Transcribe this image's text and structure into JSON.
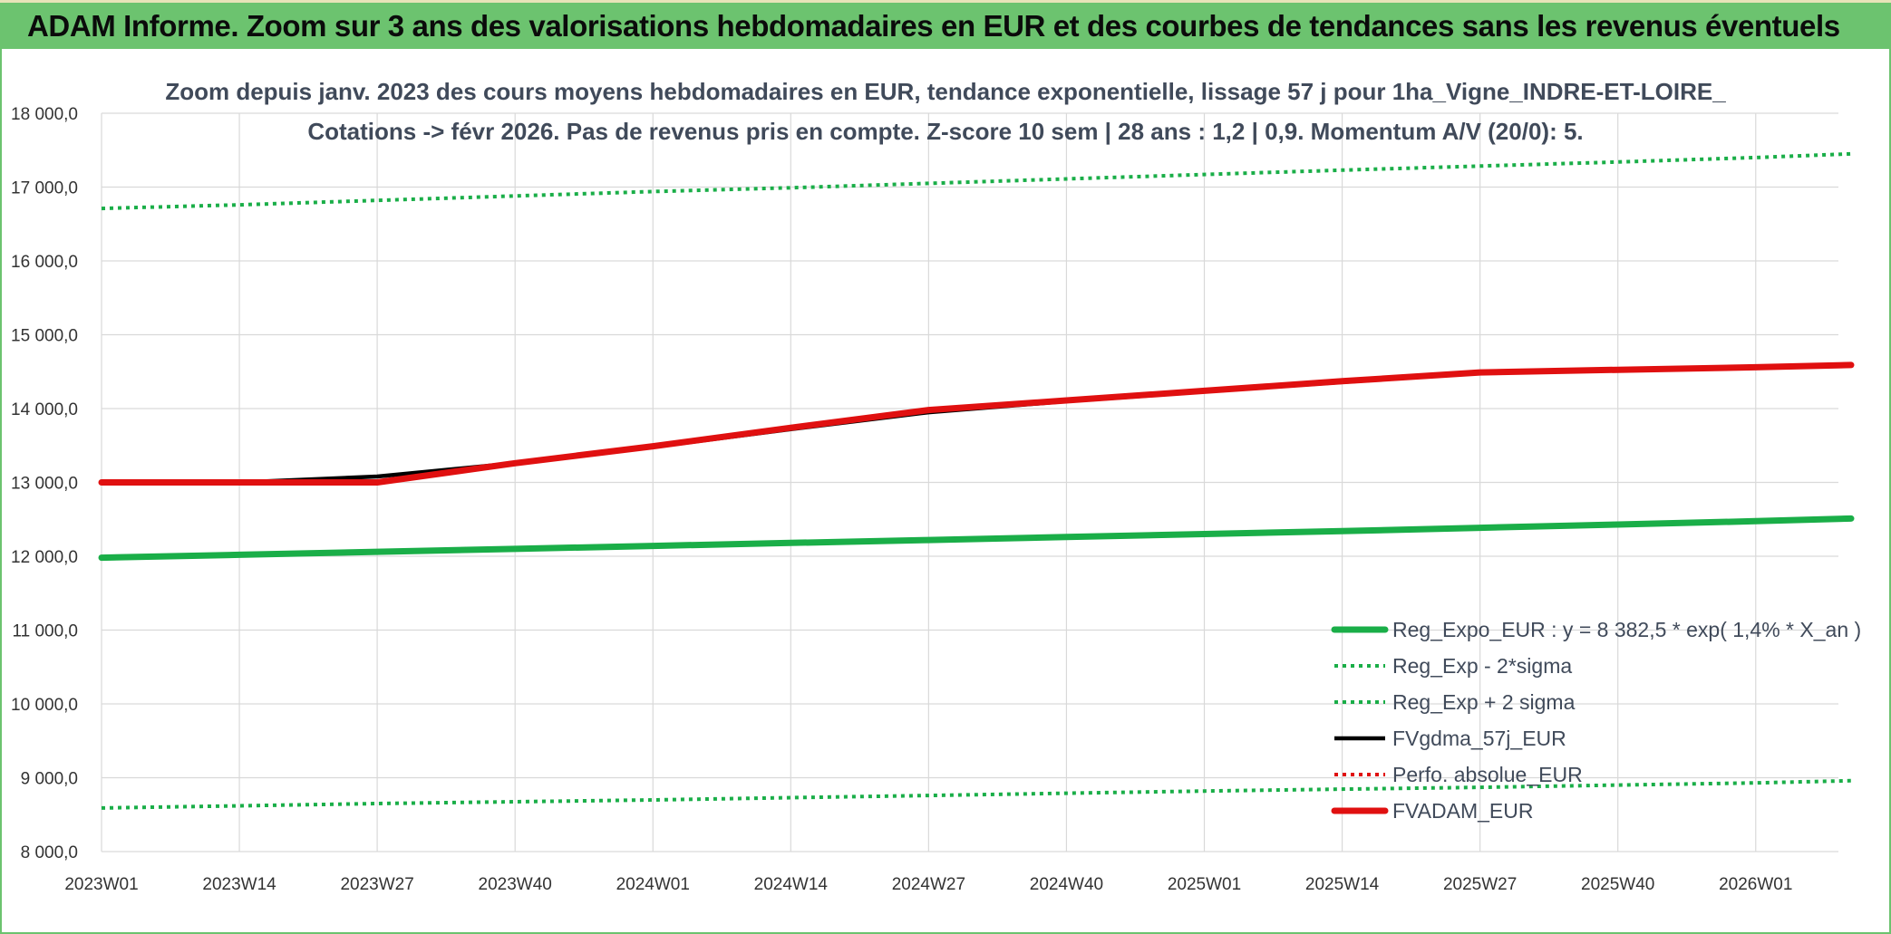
{
  "header": {
    "title": "ADAM Informe. Zoom sur 3 ans des valorisations hebdomadaires en EUR et des courbes de tendances sans les revenus éventuels"
  },
  "colors": {
    "banner": "#6cc36f",
    "reg_expo": "#1aae48",
    "sigma_bands": "#1aae48",
    "fvgdma": "#000000",
    "perfo": "#e01010",
    "fvadam": "#e01010",
    "grid": "#d9d9d9"
  },
  "chart_data": {
    "type": "line",
    "title_line1": "Zoom depuis janv. 2023 des cours moyens hebdomadaires en EUR, tendance exponentielle, lissage 57 j pour 1ha_Vigne_INDRE-ET-LOIRE_",
    "title_line2": "Cotations -> févr 2026. Pas de revenus pris en compte. Z-score 10 sem | 28 ans : 1,2 | 0,9. Momentum A/V (20/0): 5.",
    "xlabel": "",
    "ylabel": "",
    "ylim": [
      8000,
      18000
    ],
    "y_ticks": [
      "18 000,0",
      "17 000,0",
      "16 000,0",
      "15 000,0",
      "14 000,0",
      "13 000,0",
      "12 000,0",
      "11 000,0",
      "10 000,0",
      "9 000,0",
      "8 000,0"
    ],
    "x_ticks": [
      "2023W01",
      "2023W14",
      "2023W27",
      "2023W40",
      "2024W01",
      "2024W14",
      "2024W27",
      "2024W40",
      "2025W01",
      "2025W14",
      "2025W27",
      "2025W40",
      "2026W01"
    ],
    "x_points": [
      0,
      13,
      26,
      39,
      52,
      65,
      78,
      91,
      104,
      117,
      130,
      143,
      156,
      165
    ],
    "grid": true,
    "legend_position": "bottom-right",
    "series": [
      {
        "name": "Reg_Expo_EUR : y = 8 382,5 * exp( 1,4% *  X_an )",
        "style": "solid-thick",
        "values": [
          11980,
          12020,
          12060,
          12100,
          12140,
          12180,
          12220,
          12260,
          12300,
          12340,
          12385,
          12430,
          12475,
          12510
        ]
      },
      {
        "name": "Reg_Exp - 2*sigma",
        "style": "dotted",
        "values": [
          8590,
          8620,
          8650,
          8675,
          8700,
          8730,
          8760,
          8790,
          8820,
          8845,
          8870,
          8900,
          8930,
          8960
        ]
      },
      {
        "name": "Reg_Exp + 2 sigma",
        "style": "dotted",
        "values": [
          16710,
          16760,
          16820,
          16880,
          16940,
          16990,
          17050,
          17110,
          17170,
          17230,
          17285,
          17340,
          17400,
          17450
        ]
      },
      {
        "name": "FVgdma_57j_EUR",
        "style": "solid",
        "values": [
          13000,
          13000,
          13080,
          13260,
          13480,
          13720,
          13950,
          14100,
          14230,
          14360,
          14480,
          14520,
          14560,
          14580
        ]
      },
      {
        "name": "Perfo. absolue_EUR",
        "style": "dotted",
        "values": []
      },
      {
        "name": "FVADAM_EUR",
        "style": "solid-thick",
        "values": [
          13000,
          13000,
          13000,
          13260,
          13490,
          13740,
          13980,
          14110,
          14240,
          14370,
          14490,
          14525,
          14560,
          14590
        ]
      }
    ]
  }
}
